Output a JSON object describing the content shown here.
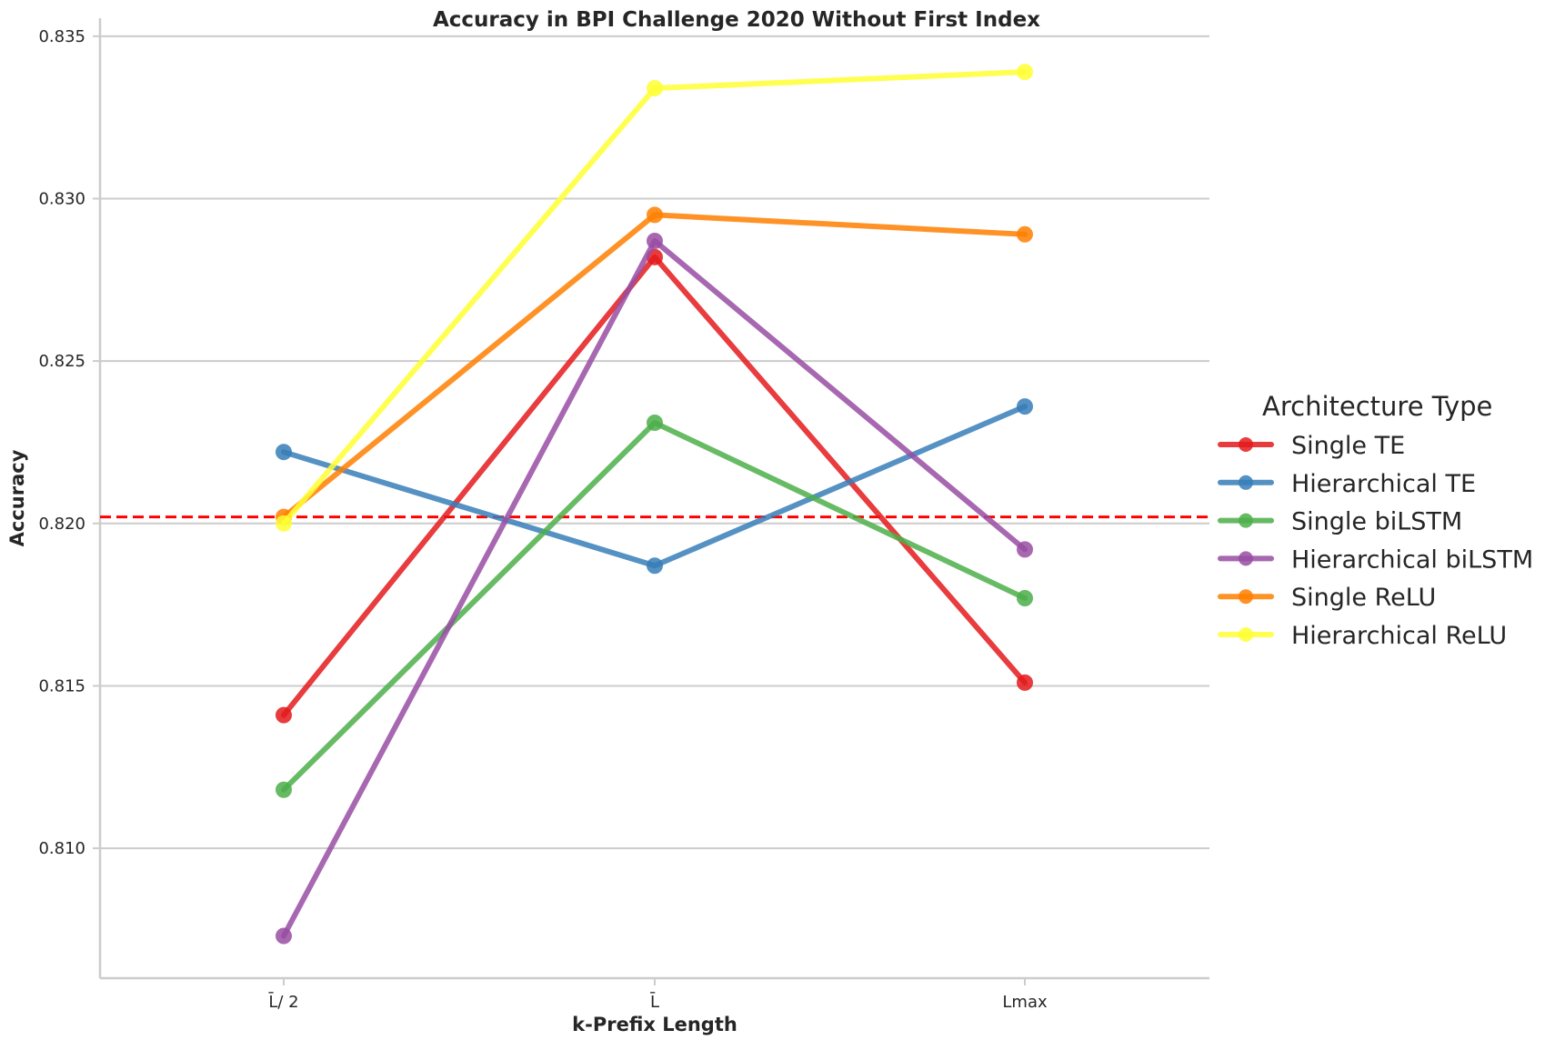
{
  "chart_data": {
    "type": "line",
    "title": "Accuracy in BPI Challenge 2020 Without First Index",
    "xlabel": "k-Prefix Length",
    "ylabel": "Accuracy",
    "categories": [
      "L̄/ 2",
      "L̄",
      "Lmax"
    ],
    "ylim": [
      0.806,
      0.8355
    ],
    "yticks": [
      0.81,
      0.815,
      0.82,
      0.825,
      0.83,
      0.835
    ],
    "ytick_labels": [
      "0.810",
      "0.815",
      "0.820",
      "0.825",
      "0.830",
      "0.835"
    ],
    "grid": "horizontal",
    "baseline": {
      "value": 0.8202,
      "color": "#ff0000",
      "style": "dashed"
    },
    "legend": {
      "title": "Architecture Type",
      "position": "right"
    },
    "series": [
      {
        "name": "Single TE",
        "color": "#e41a1c",
        "values": [
          0.8141,
          0.8282,
          0.8151
        ]
      },
      {
        "name": "Hierarchical TE",
        "color": "#377eb8",
        "values": [
          0.8222,
          0.8187,
          0.8236
        ]
      },
      {
        "name": "Single biLSTM",
        "color": "#4daf4a",
        "values": [
          0.8118,
          0.8231,
          0.8177
        ]
      },
      {
        "name": "Hierarchical biLSTM",
        "color": "#984ea3",
        "values": [
          0.8073,
          0.8287,
          0.8192
        ]
      },
      {
        "name": "Single ReLU",
        "color": "#ff7f00",
        "values": [
          0.8202,
          0.8295,
          0.8289
        ]
      },
      {
        "name": "Hierarchical ReLU",
        "color": "#ffff33",
        "values": [
          0.82,
          0.8334,
          0.8339
        ]
      }
    ]
  }
}
